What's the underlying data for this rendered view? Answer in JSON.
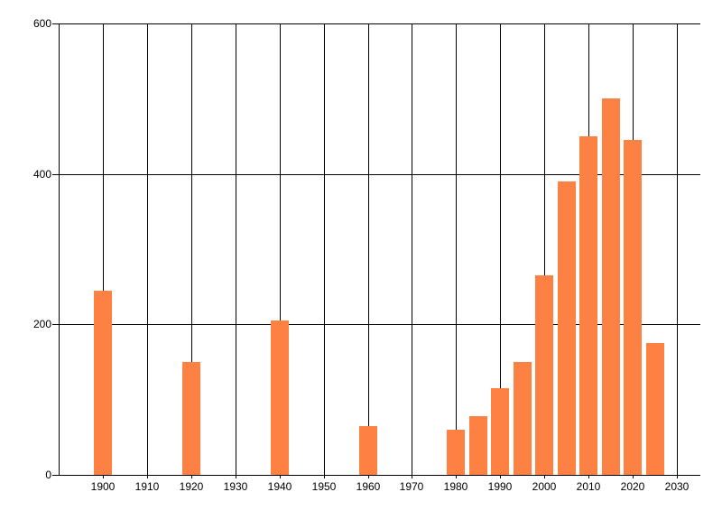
{
  "chart_data": {
    "type": "bar",
    "title": "",
    "xlabel": "",
    "ylabel": "",
    "x": [
      1900,
      1920,
      1940,
      1960,
      1980,
      1985,
      1990,
      1995,
      2000,
      2005,
      2010,
      2015,
      2020,
      2025
    ],
    "values": [
      245,
      150,
      205,
      65,
      60,
      78,
      115,
      150,
      265,
      390,
      450,
      500,
      445,
      175
    ],
    "xticks": [
      1900,
      1910,
      1920,
      1930,
      1940,
      1950,
      1960,
      1970,
      1980,
      1990,
      2000,
      2010,
      2020,
      2030
    ],
    "yticks": [
      0,
      200,
      400,
      600
    ],
    "ylim": [
      0,
      600
    ],
    "xlim": [
      1890,
      2035
    ],
    "grid": true,
    "legend": false,
    "bar_color": "#fc8142",
    "grid_color": "#000000",
    "axis_color": "#000000",
    "label_color": "#000000",
    "background_color": "#ffffff"
  }
}
